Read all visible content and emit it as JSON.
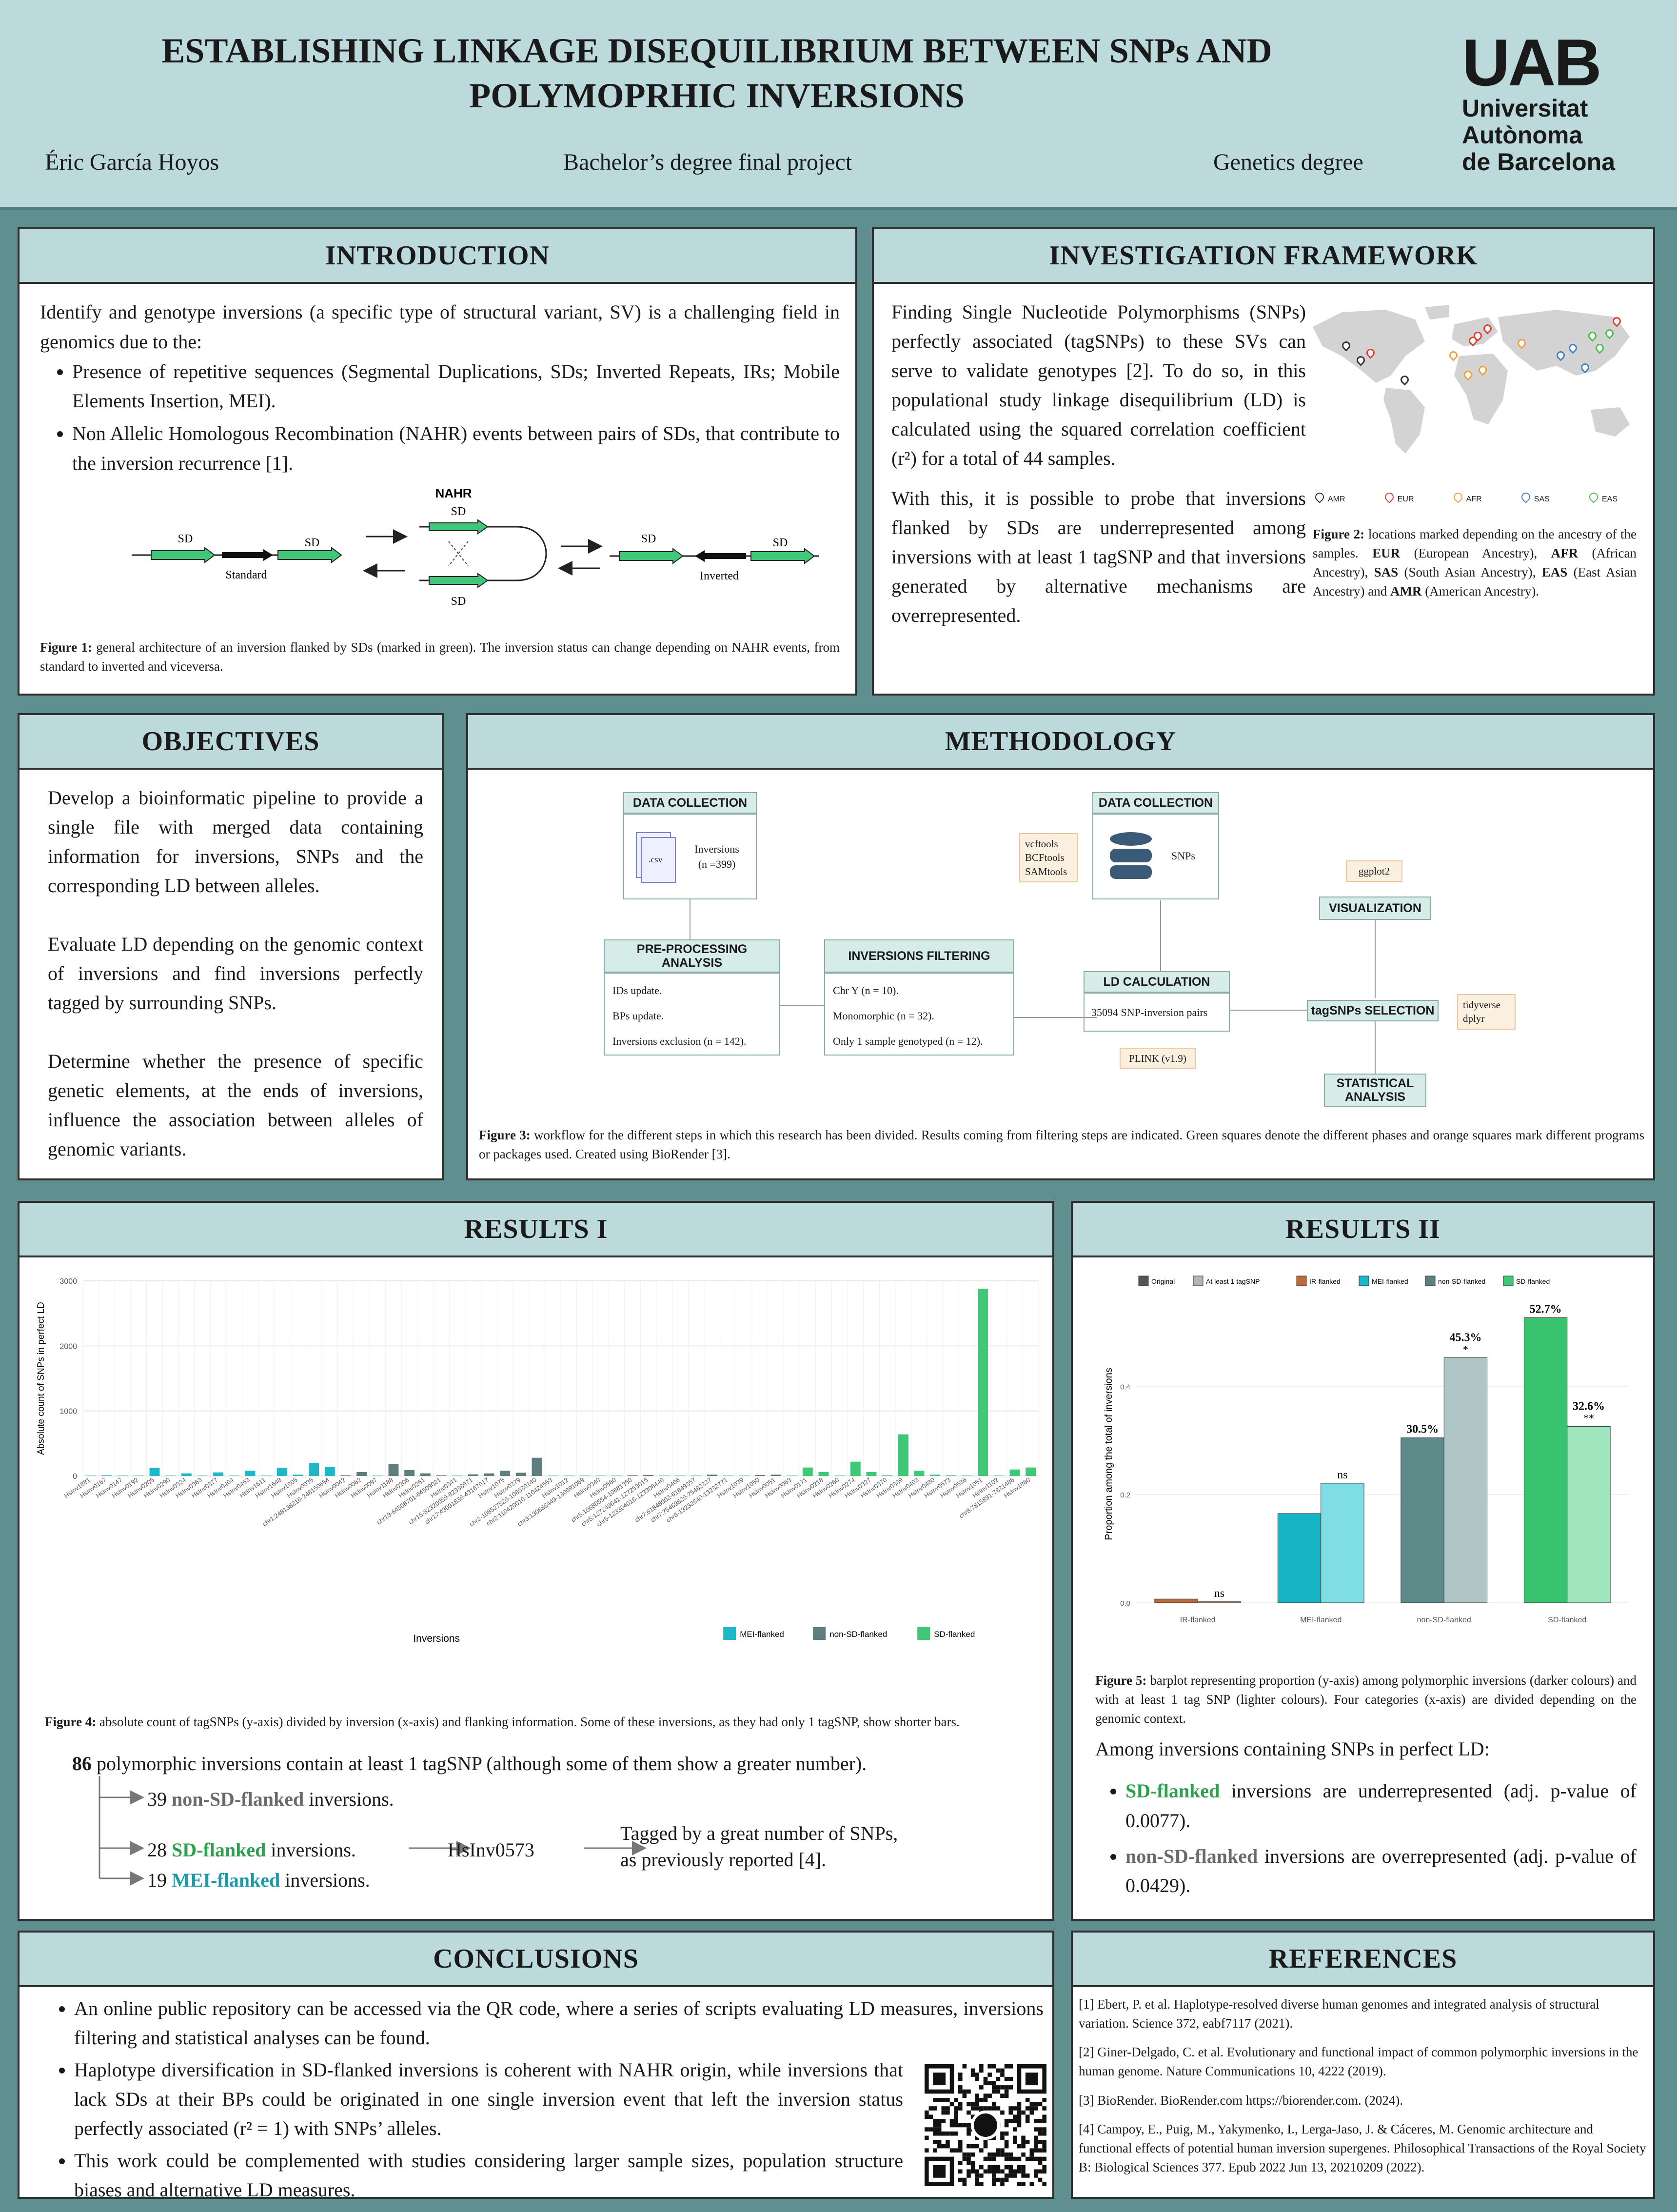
{
  "header": {
    "title": "ESTABLISHING LINKAGE DISEQUILIBRIUM BETWEEN SNPs AND POLYMOPRHIC INVERSIONS",
    "author": "Éric García Hoyos",
    "project": "Bachelor’s degree final project",
    "degree": "Genetics degree",
    "logo_acronym": "UAB",
    "logo_line1": "Universitat",
    "logo_line2": "Autònoma",
    "logo_line3": "de Barcelona"
  },
  "introduction": {
    "heading": "INTRODUCTION",
    "text": "Identify and genotype inversions (a specific type of structural variant, SV) is a challenging field in genomics due to the:",
    "bullets": [
      "Presence of repetitive sequences (Segmental Duplications, SDs; Inverted Repeats, IRs; Mobile Elements Insertion, MEI).",
      "Non Allelic Homologous Recombination (NAHR) events between pairs of SDs, that contribute to the inversion recurrence [1]."
    ],
    "figure": {
      "title": "NAHR",
      "sd_label": "SD",
      "standard_label": "Standard",
      "inverted_label": "Inverted"
    },
    "caption_bold": "Figure 1:",
    "caption": " general architecture of an inversion flanked by SDs (marked in green). The inversion status can change depending on NAHR events, from standard to inverted and viceversa."
  },
  "framework": {
    "heading": "INVESTIGATION FRAMEWORK",
    "p1": "Finding Single Nucleotide Polymorphisms (SNPs) perfectly associated (tagSNPs) to these SVs can serve to validate genotypes [2]. To do so, in this populational study linkage disequilibrium (LD) is calculated using the squared correlation coefficient (r²) for a total of 44 samples.",
    "p2": "With this, it is possible to probe that inversions flanked by SDs are underrepresented among inversions with at least 1 tagSNP and that inversions generated by alternative mechanisms are overrepresented.",
    "map_legend": [
      "AMR",
      "EUR",
      "AFR",
      "SAS",
      "EAS"
    ],
    "map_legend_colors": [
      "#333333",
      "#d9423a",
      "#f0a03c",
      "#4a7fc1",
      "#4cbf4c"
    ],
    "caption_bold": "Figure 2:",
    "caption_a": " locations marked depending on the ancestry of the samples. ",
    "eur": "EUR",
    "eur_t": " (European Ancestry), ",
    "afr": "AFR",
    "afr_t": " (African Ancestry), ",
    "sas": "SAS",
    "sas_t": " (South Asian Ancestry), ",
    "eas": "EAS",
    "eas_t": " (East Asian Ancestry) and ",
    "amr": "AMR",
    "amr_t": " (American Ancestry)."
  },
  "objectives": {
    "heading": "OBJECTIVES",
    "items": [
      "Develop a bioinformatic pipeline to provide a single file with merged data containing information for inversions, SNPs and the corresponding LD between alleles.",
      "Evaluate LD depending on the genomic context of inversions and find inversions perfectly tagged by surrounding SNPs.",
      "Determine whether the presence of specific genetic elements, at the ends of inversions, influence the association between alleles of genomic variants."
    ]
  },
  "methodology": {
    "heading": "METHODOLOGY",
    "dc1_title": "DATA COLLECTION",
    "dc1_file": ".csv",
    "dc1_text1": "Inversions",
    "dc1_text2": "(n =399)",
    "dc2_title": "DATA COLLECTION",
    "dc2_text": "SNPs",
    "tools1": [
      "vcftools",
      "BCFtools",
      "SAMtools"
    ],
    "pre_title1": "PRE-PROCESSING",
    "pre_title2": "ANALYSIS",
    "pre_items": [
      "IDs update.",
      "BPs update.",
      "Inversions exclusion (n = 142)."
    ],
    "filt_title": "INVERSIONS FILTERING",
    "filt_items": [
      "Chr Y (n = 10).",
      "Monomorphic (n = 32).",
      "Only 1 sample genotyped (n = 12)."
    ],
    "ld_title": "LD CALCULATION",
    "ld_text": "35094 SNP-inversion pairs",
    "plink": "PLINK (v1.9)",
    "ggplot": "ggplot2",
    "vis_title": "VISUALIZATION",
    "tag_title": "tagSNPs SELECTION",
    "tools2": [
      "tidyverse",
      "dplyr"
    ],
    "stat_title1": "STATISTICAL",
    "stat_title2": "ANALYSIS",
    "caption_bold": "Figure 3:",
    "caption": " workflow for the different steps in which this research has been divided. Results coming from filtering steps are indicated. Green squares denote the different phases and orange squares mark different programs or packages used. Created using BioRender [3]."
  },
  "results1": {
    "heading": "RESULTS I",
    "caption_bold": "Figure 4:",
    "caption": " absolute count of tagSNPs (y-axis) divided by inversion (x-axis) and flanking information. Some of these inversions, as they had only 1 tagSNP, show shorter bars.",
    "summary_num": "86",
    "summary": " polymorphic inversions contain at least 1 tagSNP (although some of them show a greater number).",
    "row1_num": "39 ",
    "row1_cat": "non-SD-flanked",
    "row1_rest": " inversions.",
    "row2_num": "28 ",
    "row2_cat": "SD-flanked",
    "row2_rest": " inversions.",
    "row2_inv": "HsInv0573",
    "row2_note1": "Tagged by a great number of SNPs,",
    "row2_note2": "as previously  reported [4].",
    "row3_num": "19 ",
    "row3_cat": "MEI-flanked",
    "row3_rest": " inversions."
  },
  "results2": {
    "heading": "RESULTS II",
    "caption_bold": "Figure 5:",
    "caption": " barplot representing proportion  (y-axis) among polymorphic inversions (darker colours) and with at least 1 tag SNP (lighter colours). Four categories (x-axis) are divided depending on the genomic context.",
    "lead": "Among inversions containing SNPs in perfect LD:",
    "b1_cat": "SD-flanked",
    "b1_rest": " inversions are underrepresented (adj. p-value of 0.0077).",
    "b2_cat": "non-SD-flanked",
    "b2_rest": " inversions are overrepresented (adj. p-value of 0.0429)."
  },
  "conclusions": {
    "heading": "CONCLUSIONS",
    "bullets": [
      "An online public repository can be accessed via the QR code, where a series of scripts evaluating LD measures, inversions filtering and statistical analyses can be found.",
      "Haplotype diversification in SD-flanked inversions is coherent with NAHR origin, while inversions that lack SDs at their BPs could be originated in one single inversion event that left the inversion status perfectly associated (r² = 1) with SNPs’ alleles.",
      "This work could be complemented with studies considering larger sample sizes, population structure biases and alternative LD measures."
    ]
  },
  "references": {
    "heading": "REFERENCES",
    "items": [
      "[1] Ebert, P. et al. Haplotype-resolved diverse human genomes and integrated analysis of structural variation. Science 372, eabf7117 (2021).",
      "[2] Giner-Delgado, C. et al. Evolutionary and functional impact of common polymorphic inversions in the human genome. Nature Communications 10, 4222 (2019).",
      "[3] BioRender. BioRender.com https://biorender.com. (2024).",
      "[4] Campoy, E., Puig, M., Yakymenko, I., Lerga-Jaso, J. & Cáceres, M. Genomic architecture and functional effects of potential human inversion supergenes. Philosophical Transactions of the Royal Society B: Biological Sciences 377. Epub 2022 Jun 13, 20210209 (2022)."
    ]
  },
  "chart_data": [
    {
      "type": "bar",
      "ylabel": "Absolute count of SNPs in perfect LD",
      "xlabel": "Inversions",
      "ylim": [
        0,
        3000
      ],
      "yticks": [
        0,
        1000,
        2000,
        3000
      ],
      "legend": [
        {
          "name": "MEI-flanked",
          "color": "#1fb8c8"
        },
        {
          "name": "non-SD-flanked",
          "color": "#5f7f7f"
        },
        {
          "name": "SD-flanked",
          "color": "#40c878"
        }
      ],
      "categories": [
        "HsInv1881",
        "HsInv0167",
        "HsInv0147",
        "HsInv0192",
        "HsInv0205",
        "HsInv0290",
        "HsInv0324",
        "HsInv0363",
        "HsInv0377",
        "HsInv0404",
        "HsInv0453",
        "HsInv1611",
        "HsInv1648",
        "HsInv1805",
        "HsInv0035",
        "chr1:248138216-248150654",
        "HsInv0042",
        "HsInv0062",
        "HsInv0097",
        "HsInv1188",
        "HsInv0206",
        "HsInv0251",
        "chr13-64508701-64509021",
        "HsInv0341",
        "chr15-82320059-82338971",
        "chr17:43091836-43167017",
        "HsInv1075",
        "HsInv0379",
        "chr2-108527526-108530140",
        "chr2:110420010-110424553",
        "HsInv1012",
        "chr3:130686449-130691069",
        "HsInv0340",
        "HsInv0560",
        "chr5:10680554-10681350",
        "chr5:127249641-127253015",
        "chr5-123304016-123306440",
        "HsInv0406",
        "chr7:61848002-61849357",
        "chr7:75469820-75482337",
        "chr8-13232640-13232771",
        "HsInv1039",
        "HsInv1050",
        "HsInv0051",
        "HsInv0063",
        "HsInv0171",
        "HsInv0218",
        "HsInv0260",
        "HsInv0274",
        "HsInv0327",
        "HsInv0370",
        "HsInv0389",
        "HsInv0403",
        "HsInv0480",
        "HsInv0573",
        "HsInv0586",
        "HsInv1051",
        "HsInv1102",
        "chr8:7815891-7831486",
        "HsInv1860"
      ],
      "series": [
        {
          "name": "MEI-flanked",
          "values": [
            5,
            10,
            5,
            5,
            120,
            5,
            40,
            5,
            55,
            5,
            80,
            5,
            125,
            20,
            200,
            140,
            5,
            5,
            5,
            5,
            5,
            5,
            5,
            5,
            5,
            5,
            5,
            5,
            5,
            5,
            5,
            5,
            5,
            5,
            5,
            5,
            5,
            5,
            5,
            5,
            5,
            5,
            5,
            5,
            5,
            5,
            5,
            5,
            5,
            5,
            5,
            5,
            5,
            5,
            5,
            5,
            5,
            5,
            5,
            5
          ]
        },
        {
          "name": "non-SD-flanked",
          "values": [
            0,
            0,
            0,
            0,
            0,
            0,
            0,
            0,
            0,
            0,
            0,
            0,
            0,
            0,
            0,
            0,
            10,
            60,
            5,
            180,
            90,
            40,
            10,
            5,
            25,
            40,
            80,
            50,
            280,
            5,
            5,
            5,
            5,
            5,
            10,
            15,
            5,
            5,
            5,
            20,
            5,
            5,
            15,
            20,
            5,
            40,
            5,
            5,
            5,
            5,
            5,
            5,
            5,
            5,
            5,
            5,
            5,
            5,
            5,
            5
          ]
        },
        {
          "name": "SD-flanked",
          "values": [
            0,
            0,
            0,
            0,
            0,
            0,
            0,
            0,
            0,
            0,
            0,
            0,
            0,
            0,
            0,
            0,
            0,
            0,
            0,
            0,
            0,
            0,
            0,
            0,
            0,
            0,
            0,
            0,
            0,
            0,
            0,
            0,
            0,
            0,
            0,
            0,
            0,
            0,
            0,
            0,
            0,
            0,
            0,
            0,
            0,
            130,
            60,
            5,
            220,
            60,
            10,
            640,
            80,
            20,
            10,
            5,
            2880,
            5,
            100,
            130
          ]
        }
      ]
    },
    {
      "type": "bar",
      "ylabel": "Proportion among the total of inversions",
      "categories": [
        "IR-flanked",
        "MEI-flanked",
        "non-SD-flanked",
        "SD-flanked"
      ],
      "ylim": [
        0,
        0.55
      ],
      "yticks": [
        0.0,
        0.2,
        0.4
      ],
      "legend": [
        {
          "name": "Original",
          "color": "#555555"
        },
        {
          "name": "At least 1 tagSNP",
          "color": "#b5b5b5"
        },
        {
          "name": "IR-flanked",
          "color": "#c0693a"
        },
        {
          "name": "MEI-flanked",
          "color": "#1fb8c8"
        },
        {
          "name": "non-SD-flanked",
          "color": "#5f7f7f"
        },
        {
          "name": "SD-flanked",
          "color": "#40c878"
        }
      ],
      "series": [
        {
          "name": "Original",
          "values": [
            0.007,
            0.165,
            0.305,
            0.527
          ]
        },
        {
          "name": "At least 1 tagSNP",
          "values": [
            0.002,
            0.221,
            0.453,
            0.326
          ]
        }
      ],
      "dark_colors": [
        "#c0693a",
        "#14b4c4",
        "#5f8a8a",
        "#38c46f"
      ],
      "light_colors": [
        "#d9a78a",
        "#7fdde5",
        "#b0c6c6",
        "#9fe5bd"
      ],
      "annotations": [
        {
          "category": "IR-flanked",
          "series": "At least 1 tagSNP",
          "text": "ns"
        },
        {
          "category": "MEI-flanked",
          "series": "At least 1 tagSNP",
          "text": "ns"
        },
        {
          "category": "non-SD-flanked",
          "series": "Original",
          "text": "30.5%"
        },
        {
          "category": "non-SD-flanked",
          "series": "At least 1 tagSNP",
          "text": "45.3%",
          "sig": "*"
        },
        {
          "category": "SD-flanked",
          "series": "Original",
          "text": "52.7%"
        },
        {
          "category": "SD-flanked",
          "series": "At least 1 tagSNP",
          "text": "32.6%",
          "sig": "**"
        }
      ]
    }
  ]
}
